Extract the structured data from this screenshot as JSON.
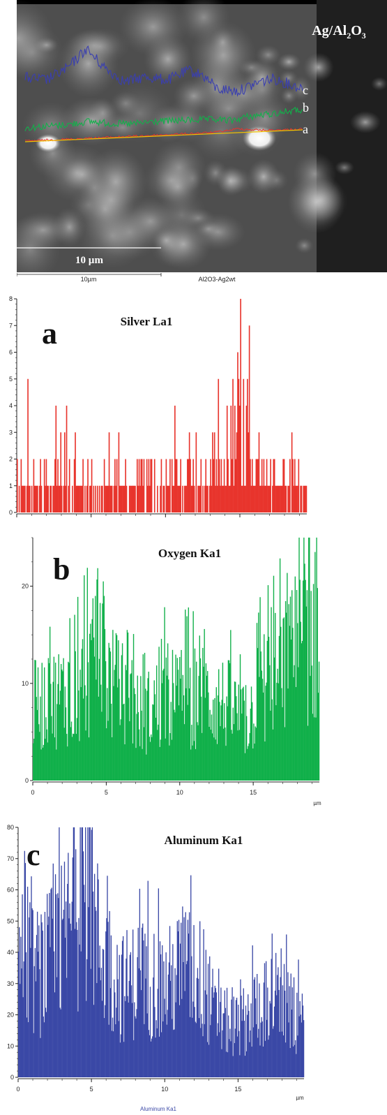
{
  "sem": {
    "title": "Ag/Al2O3",
    "scale_label": "10 µm",
    "caption_scale": "10µm",
    "caption_sample": "Al2O3-Ag2wt",
    "line_labels": [
      "c",
      "b",
      "a"
    ],
    "colors": {
      "a": "#e8342c",
      "b": "#11b04a",
      "c": "#3a3fb0"
    }
  },
  "chart_data": [
    {
      "id": "a",
      "type": "bar",
      "panel_letter": "a",
      "title": "Silver La1",
      "color": "#e8342c",
      "ylim": [
        0,
        8
      ],
      "yticks": [
        "0",
        "1",
        "2",
        "3",
        "4",
        "5",
        "6",
        "7",
        "8"
      ],
      "xlim": [
        0,
        19.5
      ],
      "xticks": [],
      "x_positions": [
        0,
        5,
        10,
        15
      ],
      "unit": "",
      "caption": "",
      "segments": [
        {
          "x0": 0.0,
          "x1": 3.0,
          "level": 1
        },
        {
          "x0": 3.0,
          "x1": 5.5,
          "level": 1
        },
        {
          "x0": 5.5,
          "x1": 9.0,
          "level": 1
        },
        {
          "x0": 9.0,
          "x1": 12.5,
          "level": 1
        },
        {
          "x0": 12.5,
          "x1": 15.0,
          "level": 1
        },
        {
          "x0": 15.0,
          "x1": 19.5,
          "level": 1
        }
      ],
      "peaks": [
        {
          "x": 0.7,
          "v": 5
        },
        {
          "x": 2.6,
          "v": 4
        },
        {
          "x": 3.3,
          "v": 4
        },
        {
          "x": 6.2,
          "v": 3
        },
        {
          "x": 10.6,
          "v": 4
        },
        {
          "x": 11.6,
          "v": 3
        },
        {
          "x": 13.5,
          "v": 5
        },
        {
          "x": 14.1,
          "v": 4
        },
        {
          "x": 14.5,
          "v": 5
        },
        {
          "x": 14.8,
          "v": 6
        },
        {
          "x": 15.0,
          "v": 8
        },
        {
          "x": 15.2,
          "v": 5
        },
        {
          "x": 15.4,
          "v": 4
        },
        {
          "x": 15.6,
          "v": 7
        }
      ],
      "profile": [
        {
          "x": 0,
          "v": 0.4
        },
        {
          "x": 5,
          "v": 0.5
        },
        {
          "x": 10,
          "v": 0.6
        },
        {
          "x": 13.2,
          "v": 0.8
        },
        {
          "x": 14.2,
          "v": 1.6
        },
        {
          "x": 15.0,
          "v": 2.6
        },
        {
          "x": 15.8,
          "v": 1.6
        },
        {
          "x": 17,
          "v": 0.7
        },
        {
          "x": 19.5,
          "v": 0.5
        }
      ]
    },
    {
      "id": "b",
      "type": "bar",
      "panel_letter": "b",
      "title": "Oxygen Ka1",
      "color": "#11b04a",
      "ylim": [
        0,
        25
      ],
      "yticks": [
        "0",
        "10",
        "20"
      ],
      "ytick_values": [
        0,
        10,
        20
      ],
      "xlim": [
        0,
        19.5
      ],
      "xticks": [
        "0",
        "5",
        "10",
        "15"
      ],
      "x_positions": [
        0,
        5,
        10,
        15
      ],
      "unit": "µm",
      "caption": "",
      "profile": [
        {
          "x": 0,
          "v": 8
        },
        {
          "x": 1.5,
          "v": 9
        },
        {
          "x": 3,
          "v": 10
        },
        {
          "x": 4.5,
          "v": 13
        },
        {
          "x": 6,
          "v": 9
        },
        {
          "x": 7.5,
          "v": 7
        },
        {
          "x": 9,
          "v": 9
        },
        {
          "x": 10.5,
          "v": 9
        },
        {
          "x": 12,
          "v": 9
        },
        {
          "x": 13.5,
          "v": 8
        },
        {
          "x": 14.5,
          "v": 6
        },
        {
          "x": 15.5,
          "v": 10
        },
        {
          "x": 17,
          "v": 12
        },
        {
          "x": 18.5,
          "v": 15
        },
        {
          "x": 19.5,
          "v": 16
        }
      ],
      "peaks": [
        {
          "x": 4.2,
          "v": 19
        },
        {
          "x": 4.8,
          "v": 19
        },
        {
          "x": 18.8,
          "v": 25
        },
        {
          "x": 19.3,
          "v": 25
        },
        {
          "x": 17.8,
          "v": 21
        },
        {
          "x": 19.5,
          "v": 19
        }
      ]
    },
    {
      "id": "c",
      "type": "bar",
      "panel_letter": "c",
      "title": "Aluminum Ka1",
      "color": "#3a48a6",
      "ylim": [
        0,
        80
      ],
      "yticks": [
        "0",
        "10",
        "20",
        "30",
        "40",
        "50",
        "60",
        "70",
        "80"
      ],
      "ytick_values": [
        0,
        10,
        20,
        30,
        40,
        50,
        60,
        70,
        80
      ],
      "xlim": [
        0,
        19.5
      ],
      "xticks": [
        "0",
        "5",
        "10",
        "15"
      ],
      "x_positions": [
        0,
        5,
        10,
        15
      ],
      "unit": "µm",
      "caption": "Aluminum Ka1",
      "profile": [
        {
          "x": 0,
          "v": 38
        },
        {
          "x": 1.5,
          "v": 35
        },
        {
          "x": 3,
          "v": 45
        },
        {
          "x": 4.3,
          "v": 62
        },
        {
          "x": 5.5,
          "v": 45
        },
        {
          "x": 7,
          "v": 30
        },
        {
          "x": 8.5,
          "v": 34
        },
        {
          "x": 10,
          "v": 30
        },
        {
          "x": 11.5,
          "v": 38
        },
        {
          "x": 12.5,
          "v": 33
        },
        {
          "x": 13.5,
          "v": 20
        },
        {
          "x": 15,
          "v": 17
        },
        {
          "x": 16.5,
          "v": 25
        },
        {
          "x": 17.5,
          "v": 27
        },
        {
          "x": 19.5,
          "v": 17
        }
      ],
      "peaks": [
        {
          "x": 4.2,
          "v": 80
        },
        {
          "x": 4.9,
          "v": 81
        },
        {
          "x": 3.9,
          "v": 73
        },
        {
          "x": 0.6,
          "v": 61
        },
        {
          "x": 17.3,
          "v": 46
        },
        {
          "x": 11.6,
          "v": 46
        }
      ]
    }
  ]
}
